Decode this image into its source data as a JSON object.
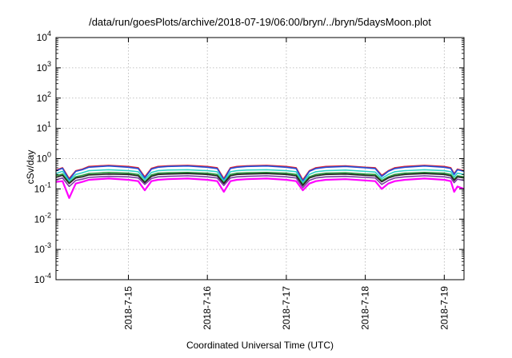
{
  "chart_data": {
    "type": "line",
    "title": "/data/run/goesPlots/archive/2018-07-19/06:00/bryn/../bryn/5daysMoon.plot",
    "xlabel": "Coordinated Universal Time (UTC)",
    "ylabel": "cSv/day",
    "yscale": "log",
    "ylim": [
      0.0001,
      10000
    ],
    "xlim": [
      "2018-07-14T02:00",
      "2018-07-19T06:00"
    ],
    "xticks": [
      "2018-7-15",
      "2018-7-16",
      "2018-7-17",
      "2018-7-18",
      "2018-7-19"
    ],
    "yticks": [
      {
        "base": "10",
        "exp": "-4"
      },
      {
        "base": "10",
        "exp": "-3"
      },
      {
        "base": "10",
        "exp": "-2"
      },
      {
        "base": "10",
        "exp": "-1"
      },
      {
        "base": "10",
        "exp": "0"
      },
      {
        "base": "10",
        "exp": "1"
      },
      {
        "base": "10",
        "exp": "2"
      },
      {
        "base": "10",
        "exp": "3"
      },
      {
        "base": "10",
        "exp": "4"
      }
    ],
    "grid": true,
    "legend": "none",
    "x": [
      "2018-07-14T02:00",
      "2018-07-14T04:00",
      "2018-07-14T06:00",
      "2018-07-14T08:00",
      "2018-07-14T10:00",
      "2018-07-14T12:00",
      "2018-07-14T18:00",
      "2018-07-15T00:00",
      "2018-07-15T03:00",
      "2018-07-15T05:00",
      "2018-07-15T07:00",
      "2018-07-15T09:00",
      "2018-07-15T12:00",
      "2018-07-15T18:00",
      "2018-07-16T00:00",
      "2018-07-16T03:00",
      "2018-07-16T05:00",
      "2018-07-16T07:00",
      "2018-07-16T09:00",
      "2018-07-16T12:00",
      "2018-07-16T18:00",
      "2018-07-17T00:00",
      "2018-07-17T03:00",
      "2018-07-17T05:00",
      "2018-07-17T07:00",
      "2018-07-17T09:00",
      "2018-07-17T12:00",
      "2018-07-17T18:00",
      "2018-07-18T00:00",
      "2018-07-18T03:00",
      "2018-07-18T05:00",
      "2018-07-18T07:00",
      "2018-07-18T09:00",
      "2018-07-18T12:00",
      "2018-07-18T18:00",
      "2018-07-19T00:00",
      "2018-07-19T02:00",
      "2018-07-19T03:00",
      "2018-07-19T04:00",
      "2018-07-19T06:00"
    ],
    "series": [
      {
        "color": "#e8212f",
        "values": [
          0.42,
          0.5,
          0.22,
          0.4,
          0.45,
          0.55,
          0.6,
          0.55,
          0.5,
          0.25,
          0.48,
          0.55,
          0.58,
          0.6,
          0.55,
          0.5,
          0.22,
          0.5,
          0.55,
          0.58,
          0.6,
          0.55,
          0.5,
          0.2,
          0.4,
          0.5,
          0.55,
          0.58,
          0.52,
          0.5,
          0.28,
          0.4,
          0.5,
          0.55,
          0.6,
          0.55,
          0.5,
          0.32,
          0.45,
          0.4
        ]
      },
      {
        "color": "#1f4fd8",
        "values": [
          0.4,
          0.48,
          0.2,
          0.38,
          0.43,
          0.52,
          0.57,
          0.52,
          0.47,
          0.23,
          0.45,
          0.52,
          0.55,
          0.57,
          0.52,
          0.47,
          0.2,
          0.47,
          0.52,
          0.55,
          0.57,
          0.52,
          0.47,
          0.18,
          0.38,
          0.47,
          0.52,
          0.55,
          0.5,
          0.47,
          0.26,
          0.38,
          0.47,
          0.52,
          0.57,
          0.52,
          0.47,
          0.3,
          0.43,
          0.38
        ]
      },
      {
        "color": "#2ed3c6",
        "values": [
          0.32,
          0.38,
          0.18,
          0.3,
          0.34,
          0.4,
          0.43,
          0.4,
          0.37,
          0.2,
          0.35,
          0.4,
          0.42,
          0.43,
          0.4,
          0.37,
          0.18,
          0.37,
          0.4,
          0.42,
          0.43,
          0.4,
          0.37,
          0.16,
          0.3,
          0.37,
          0.4,
          0.42,
          0.38,
          0.36,
          0.22,
          0.3,
          0.37,
          0.4,
          0.43,
          0.4,
          0.37,
          0.25,
          0.33,
          0.3
        ]
      },
      {
        "color": "#2a9d3c",
        "values": [
          0.27,
          0.31,
          0.16,
          0.25,
          0.28,
          0.32,
          0.35,
          0.33,
          0.3,
          0.17,
          0.29,
          0.33,
          0.34,
          0.35,
          0.33,
          0.3,
          0.16,
          0.3,
          0.33,
          0.34,
          0.35,
          0.33,
          0.3,
          0.14,
          0.25,
          0.3,
          0.33,
          0.34,
          0.31,
          0.3,
          0.19,
          0.25,
          0.3,
          0.33,
          0.35,
          0.33,
          0.3,
          0.21,
          0.27,
          0.25
        ]
      },
      {
        "color": "#222222",
        "values": [
          0.24,
          0.28,
          0.15,
          0.23,
          0.25,
          0.29,
          0.31,
          0.3,
          0.27,
          0.16,
          0.26,
          0.3,
          0.31,
          0.32,
          0.3,
          0.27,
          0.15,
          0.27,
          0.3,
          0.31,
          0.32,
          0.3,
          0.27,
          0.13,
          0.23,
          0.27,
          0.3,
          0.31,
          0.28,
          0.27,
          0.17,
          0.23,
          0.27,
          0.3,
          0.32,
          0.3,
          0.27,
          0.19,
          0.25,
          0.23
        ]
      },
      {
        "color": "#7a3fa0",
        "values": [
          0.2,
          0.23,
          0.12,
          0.19,
          0.21,
          0.24,
          0.26,
          0.25,
          0.23,
          0.14,
          0.22,
          0.25,
          0.26,
          0.27,
          0.25,
          0.23,
          0.13,
          0.23,
          0.25,
          0.26,
          0.27,
          0.25,
          0.23,
          0.11,
          0.19,
          0.23,
          0.25,
          0.26,
          0.24,
          0.23,
          0.14,
          0.19,
          0.23,
          0.25,
          0.27,
          0.25,
          0.23,
          0.16,
          0.21,
          0.19
        ]
      },
      {
        "color": "#ff00ff",
        "values": [
          0.17,
          0.18,
          0.05,
          0.15,
          0.17,
          0.2,
          0.22,
          0.2,
          0.18,
          0.09,
          0.18,
          0.2,
          0.21,
          0.22,
          0.2,
          0.18,
          0.08,
          0.18,
          0.2,
          0.21,
          0.22,
          0.2,
          0.18,
          0.09,
          0.15,
          0.18,
          0.2,
          0.21,
          0.19,
          0.18,
          0.1,
          0.15,
          0.18,
          0.2,
          0.22,
          0.2,
          0.18,
          0.08,
          0.12,
          0.1
        ]
      }
    ]
  }
}
